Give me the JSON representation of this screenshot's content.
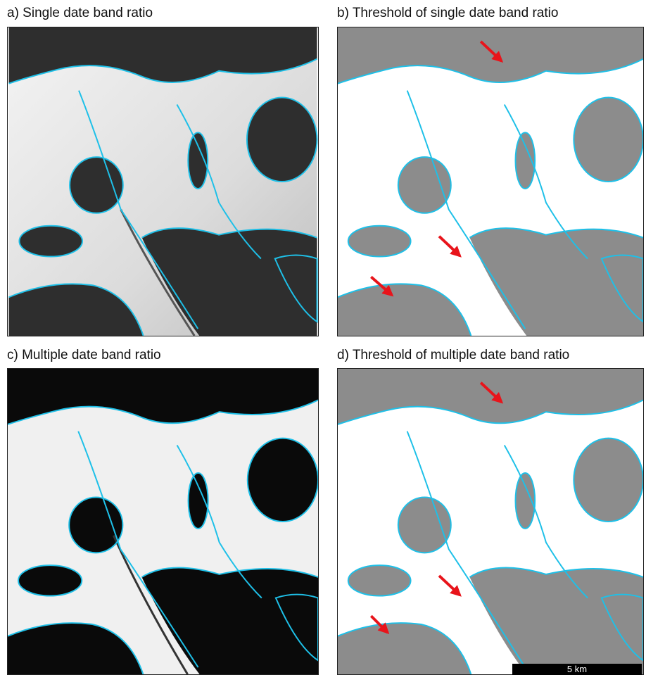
{
  "panels": [
    {
      "title": "a) Single date band ratio"
    },
    {
      "title": "b) Threshold of single date band ratio"
    },
    {
      "title": "c) Multiple date band ratio"
    },
    {
      "title": "d) Threshold of multiple date band ratio"
    }
  ],
  "scale_bar": {
    "label": "5 km"
  }
}
